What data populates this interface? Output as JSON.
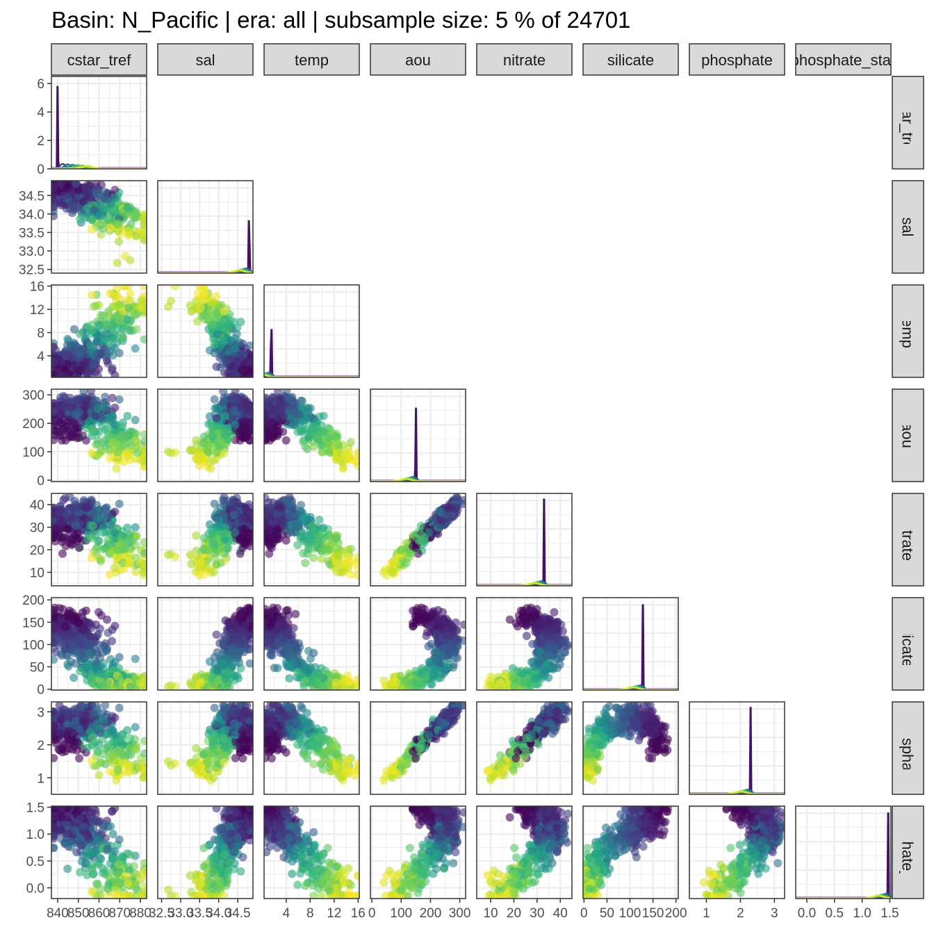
{
  "title": "Basin: N_Pacific | era: all | subsample size: 5 % of 24701",
  "chart_data": {
    "type": "scatter",
    "layout": "lower-triangle scatterplot matrix with density plots on the diagonal",
    "grid": true,
    "color_scale": "viridis",
    "variables": [
      {
        "name": "cstar_tref",
        "ticks": [
          840,
          850,
          860,
          870,
          880
        ],
        "range": [
          837,
          883
        ]
      },
      {
        "name": "sal",
        "ticks": [
          32.5,
          33.0,
          33.5,
          34.0,
          34.5
        ],
        "range": [
          32.4,
          34.9
        ]
      },
      {
        "name": "temp",
        "ticks": [
          4,
          8,
          12,
          16
        ],
        "range": [
          0.3,
          16.2
        ]
      },
      {
        "name": "aou",
        "ticks": [
          0,
          100,
          200,
          300
        ],
        "range": [
          -5,
          320
        ]
      },
      {
        "name": "nitrate",
        "ticks": [
          10,
          20,
          30,
          40
        ],
        "range": [
          4,
          45
        ]
      },
      {
        "name": "silicate",
        "ticks": [
          0,
          50,
          100,
          150,
          200
        ],
        "range": [
          -2,
          205
        ]
      },
      {
        "name": "phosphate",
        "ticks": [
          1,
          2,
          3
        ],
        "range": [
          0.5,
          3.3
        ]
      },
      {
        "name": "phosphate_star",
        "ticks": [
          0.0,
          0.5,
          1.0,
          1.5
        ],
        "range": [
          -0.2,
          1.52
        ]
      }
    ],
    "x_tick_labels": {
      "cstar_tref": [
        "840",
        "850",
        "860",
        "870",
        "880"
      ],
      "sal": [
        "32.5",
        "33.0",
        "33.5",
        "34.0",
        "34.5"
      ],
      "temp": [
        "4",
        "8",
        "12",
        "16"
      ],
      "aou": [
        "0",
        "100",
        "200",
        "300"
      ],
      "nitrate": [
        "10",
        "20",
        "30",
        "40"
      ],
      "silicate": [
        "0",
        "50",
        "100",
        "150",
        "200"
      ],
      "phosphate": [
        "1",
        "2",
        "3"
      ],
      "phosphate_star": [
        "0.0",
        "0.5",
        "1.0",
        "1.5"
      ]
    },
    "y_tick_labels": {
      "cstar_tref": [
        "0",
        "2",
        "4",
        "6"
      ],
      "sal": [
        "32.5",
        "33.0",
        "33.5",
        "34.0",
        "34.5"
      ],
      "temp": [
        "4",
        "8",
        "12",
        "16"
      ],
      "aou": [
        "0",
        "100",
        "200",
        "300"
      ],
      "nitrate": [
        "10",
        "20",
        "30",
        "40"
      ],
      "silicate": [
        "0",
        "50",
        "100",
        "150",
        "200"
      ],
      "phosphate": [
        "1",
        "2",
        "3"
      ],
      "phosphate_star": [
        "0.0",
        "0.5",
        "1.0",
        "1.5"
      ]
    },
    "diagonal_density_yrange": [
      0,
      6.3
    ],
    "density_peaks": {
      "cstar_tref": 840,
      "sal": 34.8,
      "temp": 1.5,
      "aou": 150,
      "nitrate": 33,
      "silicate": 128,
      "phosphate": 2.3,
      "phosphate_star": 1.47
    }
  }
}
